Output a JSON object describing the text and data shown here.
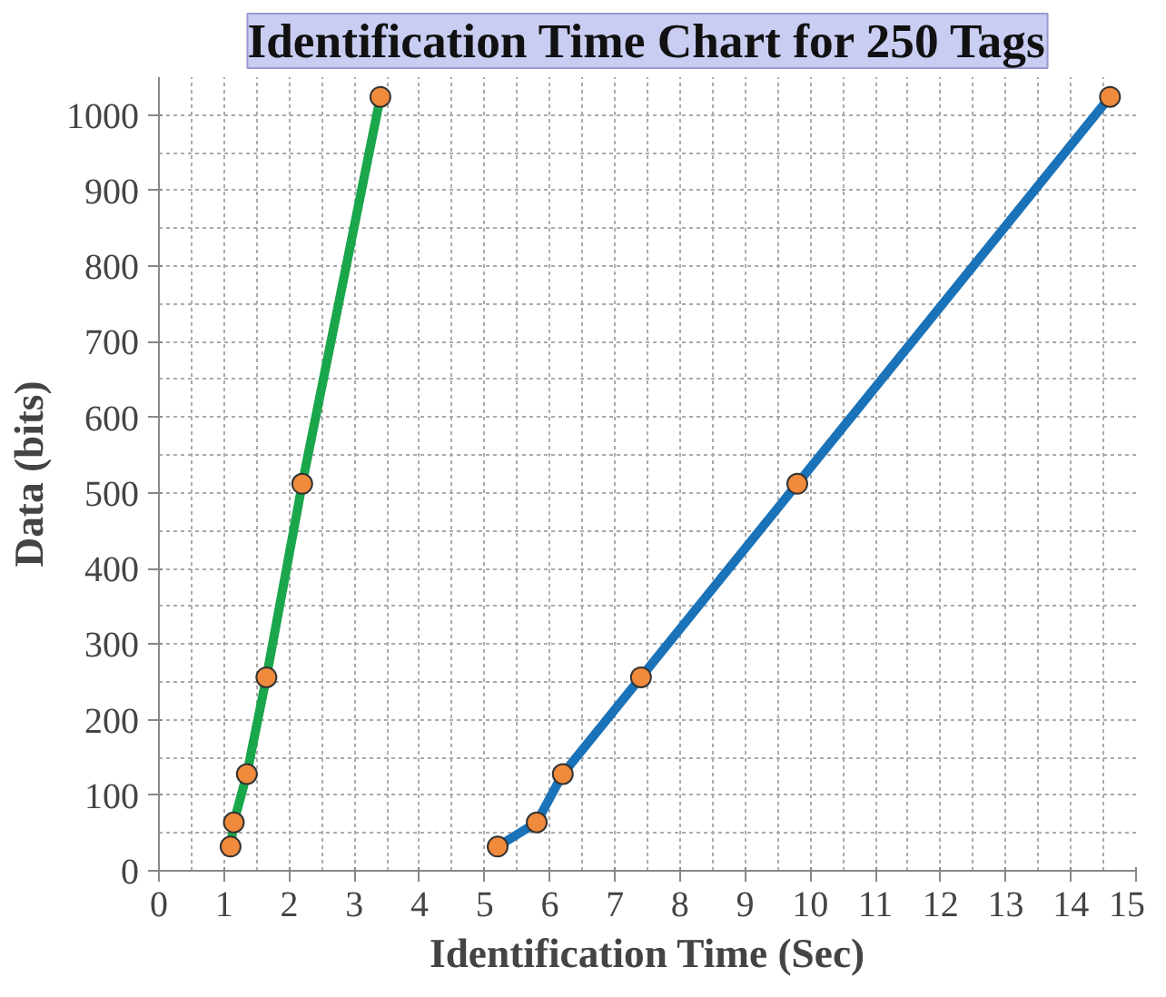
{
  "chart_data": {
    "type": "line",
    "title": "Identification Time Chart for 250 Tags",
    "xlabel": "Identification Time (Sec)",
    "ylabel": "Data (bits)",
    "xlim": [
      0,
      15
    ],
    "xticks": [
      0,
      1,
      2,
      3,
      4,
      5,
      6,
      7,
      8,
      9,
      10,
      11,
      12,
      13,
      14,
      15
    ],
    "ylim": [
      0,
      1050
    ],
    "yticks": [
      0,
      100,
      200,
      300,
      400,
      500,
      600,
      700,
      800,
      900,
      1000
    ],
    "grid": true,
    "marker": "circle",
    "line_style": "solid",
    "series": [
      {
        "color": "#1aa64a",
        "x": [
          1.1,
          1.15,
          1.35,
          1.65,
          2.2,
          3.4
        ],
        "values": [
          32,
          64,
          128,
          256,
          512,
          1024
        ]
      },
      {
        "color": "#1a72b8",
        "x": [
          5.2,
          5.8,
          6.2,
          7.4,
          9.8,
          14.6
        ],
        "values": [
          32,
          64,
          128,
          256,
          512,
          1024
        ]
      }
    ]
  }
}
